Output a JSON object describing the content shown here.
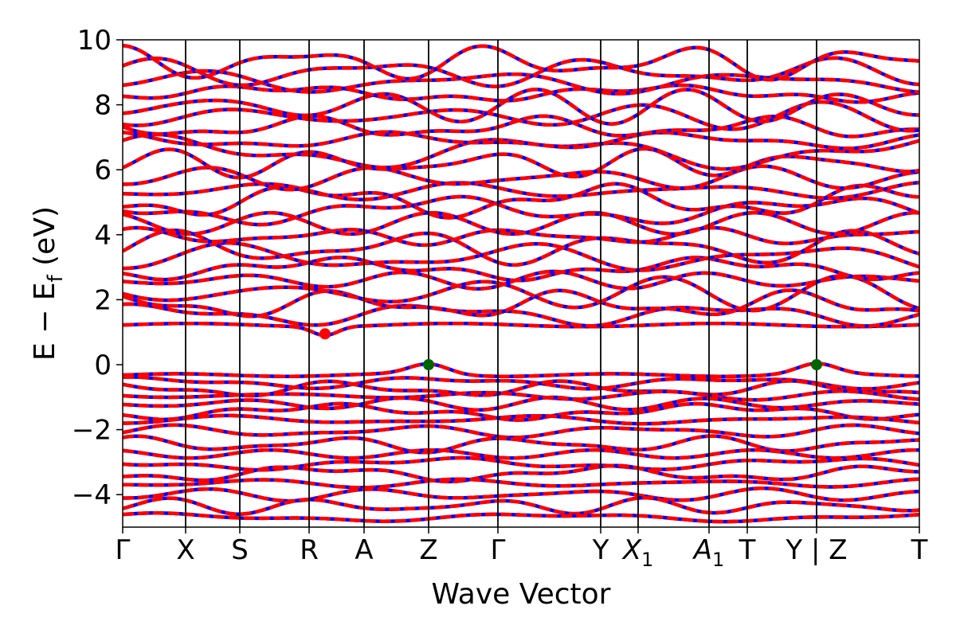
{
  "chart_data": {
    "type": "line",
    "title": "",
    "xlabel": "Wave Vector",
    "ylabel": "E − E_f (eV)",
    "ylabel_parts": {
      "main": "E − E",
      "sub": "f",
      "unit": " (eV)"
    },
    "ylim": [
      -5,
      10
    ],
    "yticks": [
      -4,
      -2,
      0,
      2,
      4,
      6,
      8,
      10
    ],
    "ytick_labels": [
      "−4",
      "−2",
      "0",
      "2",
      "4",
      "6",
      "8",
      "10"
    ],
    "xlim": [
      0,
      10.0
    ],
    "kpoints": [
      {
        "label": "Γ",
        "x": 0.0
      },
      {
        "label": "X",
        "x": 0.79
      },
      {
        "label": "S",
        "x": 1.47
      },
      {
        "label": "R",
        "x": 2.34
      },
      {
        "label": "A",
        "x": 3.03
      },
      {
        "label": "Z",
        "x": 3.84
      },
      {
        "label": "Γ",
        "x": 4.71
      },
      {
        "label": "Y",
        "x": 6.0
      },
      {
        "label": "X",
        "sub": "1",
        "x": 6.47
      },
      {
        "label": "A",
        "sub": "1",
        "x": 7.36
      },
      {
        "label": "T",
        "x": 7.84
      },
      {
        "label": "Y | Z",
        "x": 8.71
      },
      {
        "label": "T",
        "x": 10.0
      }
    ],
    "legend": "none",
    "grid": false,
    "series_colors": {
      "band_main": "#ff0000",
      "band_dash": "#0000ff"
    },
    "markers": [
      {
        "name": "vbm-marker-z",
        "x": 3.84,
        "y": 0.0,
        "color": "#006400"
      },
      {
        "name": "vbm-marker-yz",
        "x": 8.71,
        "y": 0.0,
        "color": "#006400"
      },
      {
        "name": "cbm-marker",
        "x": 2.54,
        "y": 0.95,
        "color": "#ff0000"
      }
    ],
    "conduction_bands": [
      1.22,
      1.55,
      1.85,
      2.2,
      2.6,
      2.95,
      3.3,
      3.6,
      3.95,
      4.35,
      4.75,
      5.05,
      5.35,
      5.75,
      6.2,
      6.55,
      6.9,
      7.3,
      7.65,
      7.95,
      8.35,
      8.7,
      9.0,
      9.3
    ],
    "valence_bands": [
      -0.32,
      -0.55,
      -0.75,
      -0.95,
      -1.2,
      -1.45,
      -1.7,
      -2.05,
      -2.45,
      -2.75,
      -3.05,
      -3.35,
      -3.65,
      -4.0,
      -4.35,
      -4.7
    ]
  }
}
